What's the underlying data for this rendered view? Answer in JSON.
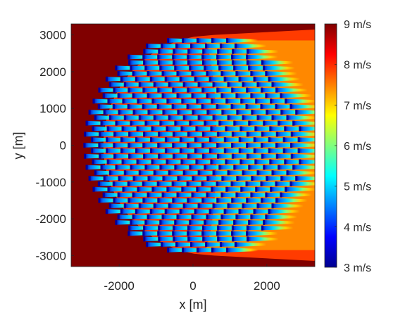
{
  "chart_data": {
    "type": "heatmap",
    "title": "",
    "xlabel": "x [m]",
    "ylabel": "y [m]",
    "xlim": [
      -3300,
      3300
    ],
    "ylim": [
      -3300,
      3300
    ],
    "xticks": [
      {
        "value": -2000,
        "label": "-2000"
      },
      {
        "value": 0,
        "label": "0"
      },
      {
        "value": 2000,
        "label": "2000"
      }
    ],
    "yticks": [
      {
        "value": 3000,
        "label": "3000"
      },
      {
        "value": 2000,
        "label": "2000"
      },
      {
        "value": 1000,
        "label": "1000"
      },
      {
        "value": 0,
        "label": "0"
      },
      {
        "value": -1000,
        "label": "-1000"
      },
      {
        "value": -2000,
        "label": "-2000"
      },
      {
        "value": -3000,
        "label": "-3000"
      }
    ],
    "colorbar": {
      "min": 3,
      "max": 9,
      "unit": "m/s",
      "colormap": "jet",
      "labels": [
        {
          "value": 9,
          "label": "9 m/s"
        },
        {
          "value": 8,
          "label": "8 m/s"
        },
        {
          "value": 7,
          "label": "7 m/s"
        },
        {
          "value": 6,
          "label": "6 m/s"
        },
        {
          "value": 5,
          "label": "5 m/s"
        },
        {
          "value": 4,
          "label": "4 m/s"
        },
        {
          "value": 3,
          "label": "3 m/s"
        }
      ]
    },
    "freestream_speed": 9,
    "farm_radius_m": 3000,
    "row_spacing_m": 300,
    "grid": false
  },
  "colors": {
    "background": "#800000",
    "wake_far": "#ff3b00",
    "wake_mid": "#ffc800",
    "wake_near": "#00d8ff",
    "rotor": "#0000a0",
    "axis": "#262626"
  }
}
